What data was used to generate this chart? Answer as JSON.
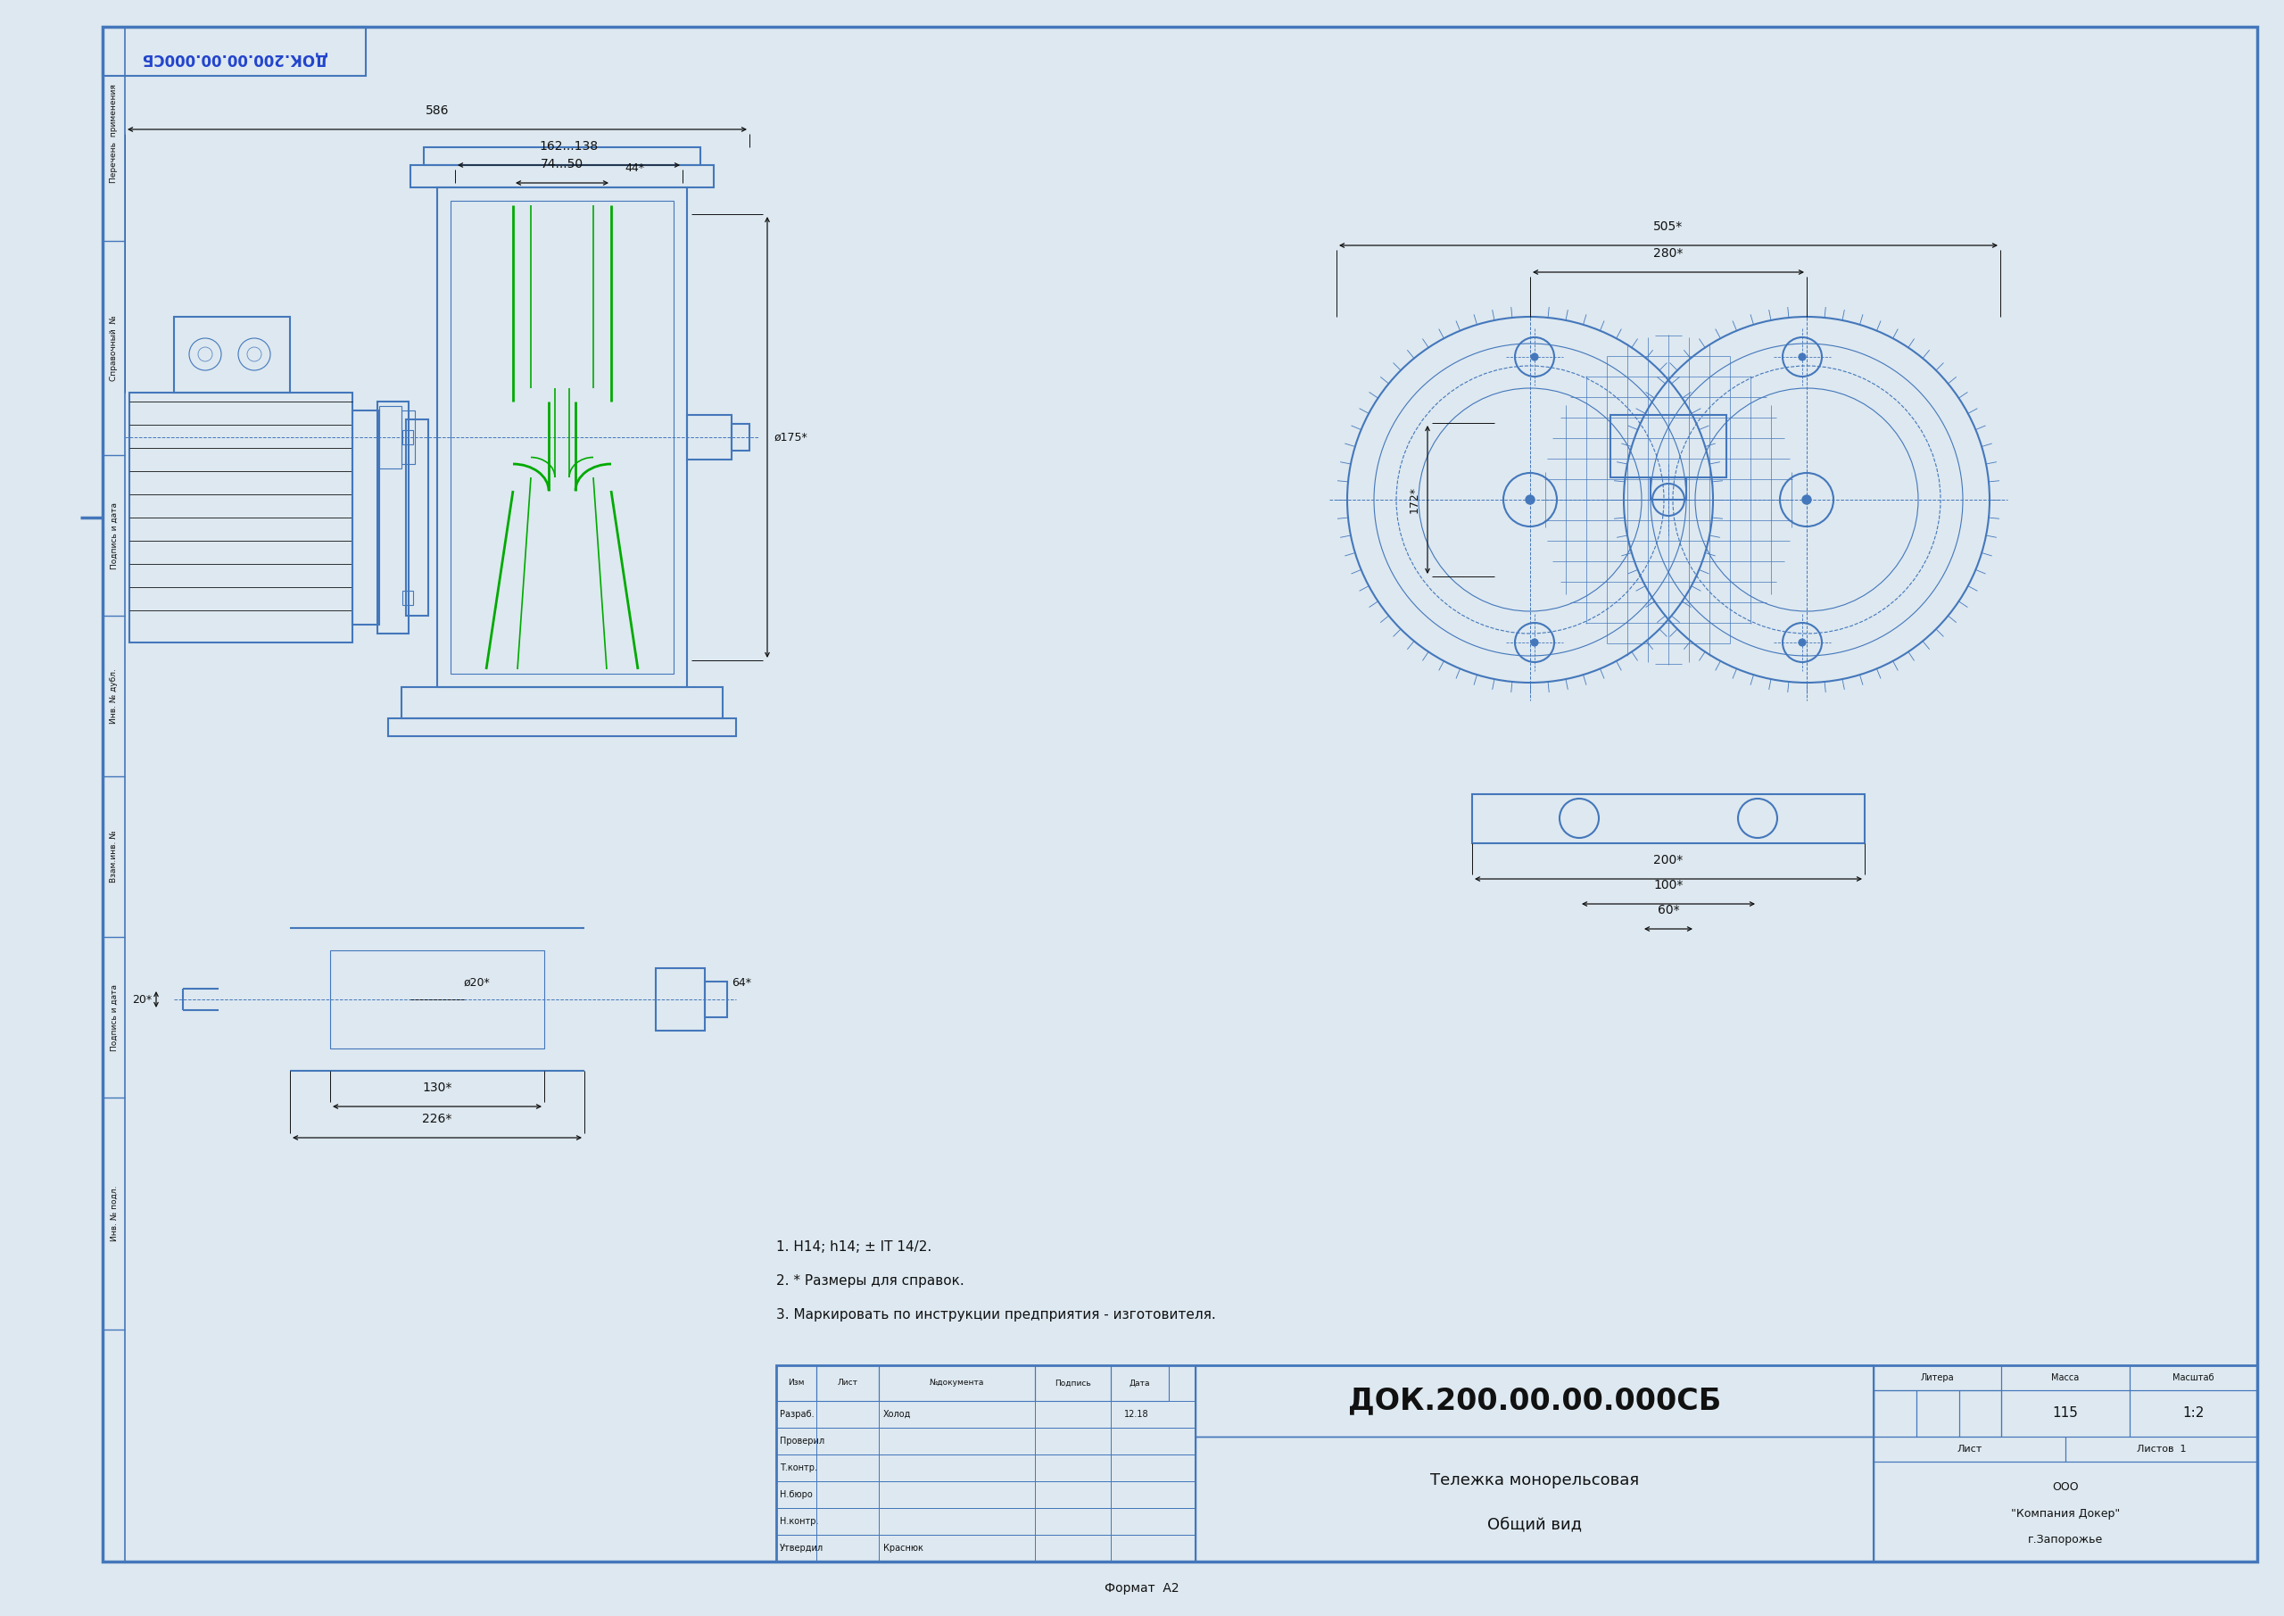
{
  "bg_color": "#dde8f0",
  "white": "#ffffff",
  "border_color": "#4477bb",
  "line_color": "#4477bb",
  "green_color": "#00aa00",
  "dark_line": "#111111",
  "thin_line": "#4477bb",
  "title_top_left": "ДОК.200.00.00.000СБ",
  "stamp_title": "ДОК.200.00.00.000СБ",
  "stamp_name": "Тележка монорельсовая",
  "stamp_view": "Общий вид",
  "stamp_razrab": "Разраб.",
  "stamp_holod": "Холод",
  "stamp_date": "12.18",
  "stamp_mass": "115",
  "stamp_scale": "1:2",
  "stamp_listy": "Листов  1",
  "stamp_lист": "Лист",
  "stamp_ooo": "ООО",
  "stamp_company": "\"Компания Докер\"",
  "stamp_city": "г.Запорожье",
  "stamp_format": "Формат  А2",
  "left_labels": [
    "Перечень  применения",
    "Справочный  №",
    "Подпись и дата",
    "Инв. № дубл.",
    "Взам.инв. №",
    "Подпись и дата",
    "Инв. № подл."
  ],
  "stamp_cols": [
    "Изм",
    "Лист",
    "№документа",
    "Подпись",
    "Дата"
  ],
  "stamp_rows": [
    "Разраб.",
    "Проверил",
    "Т.контр.",
    "Н.бюро",
    "Н.контр.",
    "Утвердил"
  ],
  "stamp_row_data": [
    "Холод",
    "",
    "",
    "",
    "",
    "Краснюк"
  ],
  "stamp_row_dates": [
    "12.18",
    "",
    "",
    "",
    "",
    ""
  ],
  "notes": [
    "1. Н14; h14; ± IT 14/2.",
    "2. * Размеры для справок.",
    "3. Маркировать по инструкции предприятия - изготовителя."
  ],
  "dim_586": "586",
  "dim_162_138": "162...138",
  "dim_74_50": "74...50",
  "dim_44": "44*",
  "dim_175": "ø175*",
  "dim_505": "505*",
  "dim_280": "280*",
  "dim_172": "172*",
  "dim_200": "200*",
  "dim_60": "60*",
  "dim_100": "100*",
  "dim_20_bot": "20*",
  "dim_130": "130*",
  "dim_226": "226*",
  "dim_o20": "ø20*",
  "dim_64": "64*"
}
